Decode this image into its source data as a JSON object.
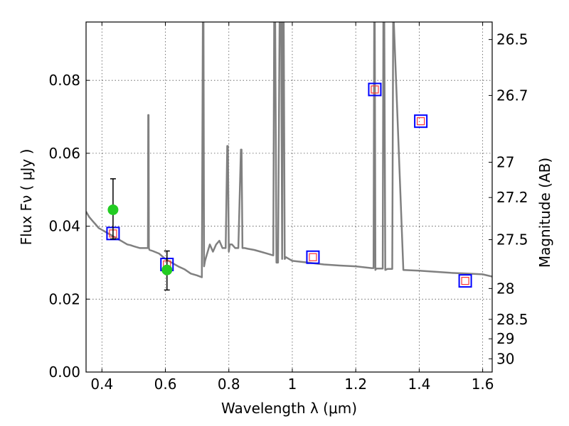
{
  "chart_data": {
    "type": "line",
    "title": "",
    "xlabel": "Wavelength  λ (μm)",
    "ylabel": "Flux  Fν  ( μJy )",
    "y2label": "Magnitude (AB)",
    "xlim": [
      0.35,
      1.63
    ],
    "ylim": [
      0.0,
      0.096
    ],
    "grid": true,
    "legend": "none",
    "x_ticks": [
      {
        "value": 0.4,
        "label": "0.4"
      },
      {
        "value": 0.6,
        "label": "0.6"
      },
      {
        "value": 0.8,
        "label": "0.8"
      },
      {
        "value": 1.0,
        "label": "1"
      },
      {
        "value": 1.2,
        "label": "1.2"
      },
      {
        "value": 1.4,
        "label": "1.4"
      },
      {
        "value": 1.6,
        "label": "1.6"
      }
    ],
    "y_ticks": [
      {
        "value": 0.0,
        "label": "0.00"
      },
      {
        "value": 0.02,
        "label": "0.02"
      },
      {
        "value": 0.04,
        "label": "0.04"
      },
      {
        "value": 0.06,
        "label": "0.06"
      },
      {
        "value": 0.08,
        "label": "0.08"
      }
    ],
    "magnitude_ticks": [
      {
        "mag": 26.5,
        "label": "26.5"
      },
      {
        "mag": 26.7,
        "label": "26.7"
      },
      {
        "mag": 27.0,
        "label": "27"
      },
      {
        "mag": 27.2,
        "label": "27.2"
      },
      {
        "mag": 27.5,
        "label": "27.5"
      },
      {
        "mag": 28.0,
        "label": "28"
      },
      {
        "mag": 28.5,
        "label": "28.5"
      },
      {
        "mag": 29.0,
        "label": "29"
      },
      {
        "mag": 30.0,
        "label": "30"
      }
    ],
    "colors": {
      "model": "#808080",
      "observed": "#22cc22",
      "model_box": "#0000ff",
      "model_inner": "#ff3333",
      "grid": "#555555"
    },
    "series": [
      {
        "kind": "model-spectrum",
        "x": [
          0.35,
          0.36,
          0.37,
          0.38,
          0.39,
          0.4,
          0.41,
          0.42,
          0.43,
          0.44,
          0.45,
          0.46,
          0.47,
          0.48,
          0.49,
          0.5,
          0.52,
          0.54,
          0.545,
          0.546,
          0.547,
          0.548,
          0.55,
          0.56,
          0.58,
          0.6,
          0.62,
          0.64,
          0.66,
          0.68,
          0.7,
          0.715,
          0.718,
          0.72,
          0.722,
          0.725,
          0.73,
          0.74,
          0.75,
          0.76,
          0.77,
          0.78,
          0.79,
          0.795,
          0.797,
          0.8,
          0.803,
          0.81,
          0.82,
          0.83,
          0.838,
          0.84,
          0.843,
          0.85,
          0.86,
          0.88,
          0.9,
          0.92,
          0.94,
          0.943,
          0.946,
          0.95,
          0.955,
          0.96,
          0.962,
          0.965,
          0.968,
          0.97,
          0.973,
          0.976,
          0.98,
          1.0,
          1.05,
          1.1,
          1.15,
          1.2,
          1.25,
          1.256,
          1.258,
          1.26,
          1.262,
          1.265,
          1.28,
          1.285,
          1.287,
          1.29,
          1.293,
          1.3,
          1.31,
          1.315,
          1.318,
          1.32,
          1.35,
          1.4,
          1.45,
          1.5,
          1.55,
          1.6,
          1.63
        ],
        "y": [
          0.044,
          0.0425,
          0.0415,
          0.0405,
          0.0395,
          0.039,
          0.0385,
          0.038,
          0.0375,
          0.037,
          0.0365,
          0.036,
          0.0355,
          0.035,
          0.0348,
          0.0345,
          0.034,
          0.034,
          0.034,
          0.0705,
          0.0705,
          0.034,
          0.0335,
          0.0332,
          0.0325,
          0.031,
          0.03,
          0.029,
          0.0282,
          0.027,
          0.0265,
          0.026,
          0.096,
          0.096,
          0.029,
          0.0305,
          0.032,
          0.035,
          0.033,
          0.035,
          0.036,
          0.034,
          0.034,
          0.062,
          0.062,
          0.033,
          0.035,
          0.035,
          0.034,
          0.034,
          0.061,
          0.061,
          0.034,
          0.034,
          0.0338,
          0.0335,
          0.033,
          0.0325,
          0.032,
          0.096,
          0.096,
          0.03,
          0.03,
          0.096,
          0.096,
          0.096,
          0.031,
          0.096,
          0.096,
          0.031,
          0.0315,
          0.0305,
          0.03,
          0.0295,
          0.0292,
          0.029,
          0.0285,
          0.0285,
          0.096,
          0.096,
          0.028,
          0.0284,
          0.0284,
          0.0284,
          0.096,
          0.096,
          0.028,
          0.0283,
          0.0283,
          0.0283,
          0.096,
          0.096,
          0.028,
          0.0278,
          0.0275,
          0.0272,
          0.027,
          0.0268,
          0.0262
        ]
      },
      {
        "kind": "observed-photometry",
        "points": [
          {
            "x": 0.435,
            "y": 0.0445,
            "err_low": 0.0365,
            "err_high": 0.053
          },
          {
            "x": 0.605,
            "y": 0.028,
            "err_low": 0.0225,
            "err_high": 0.0332
          }
        ]
      },
      {
        "kind": "model-photometry",
        "points": [
          {
            "x": 0.435,
            "y": 0.038
          },
          {
            "x": 0.605,
            "y": 0.0295
          },
          {
            "x": 1.065,
            "y": 0.0315
          },
          {
            "x": 1.26,
            "y": 0.0775
          },
          {
            "x": 1.405,
            "y": 0.0688
          },
          {
            "x": 1.545,
            "y": 0.025
          }
        ]
      }
    ]
  }
}
